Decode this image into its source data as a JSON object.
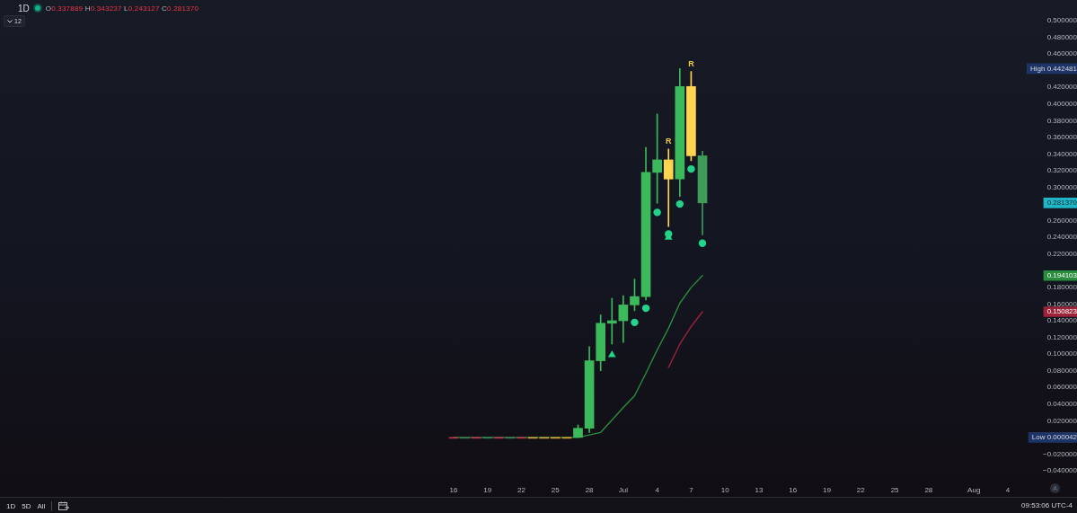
{
  "chart_data": {
    "type": "candlestick",
    "title": "1D",
    "subtitle": "O0.337889 H0.343237 L0.243127 C0.281370",
    "x": [
      "--06-16",
      "--06-17",
      "--06-18",
      "--06-19",
      "--06-20",
      "--06-21",
      "--06-22",
      "--06-23",
      "--06-24",
      "--06-25",
      "--06-26",
      "--06-27",
      "--06-28",
      "--06-29",
      "--06-30",
      "--07-01",
      "--07-02",
      "--07-03",
      "--07-04",
      "--07-05",
      "--07-06",
      "--07-07",
      "--07-08"
    ],
    "ohlc": [
      [
        4.2e-05,
        4.2e-05,
        4.2e-05,
        4.2e-05
      ],
      [
        4.2e-05,
        4.2e-05,
        4.2e-05,
        4.2e-05
      ],
      [
        4.2e-05,
        4.2e-05,
        4.2e-05,
        4.2e-05
      ],
      [
        4.2e-05,
        4.2e-05,
        4.2e-05,
        4.2e-05
      ],
      [
        4.2e-05,
        4.2e-05,
        4.2e-05,
        4.2e-05
      ],
      [
        4.2e-05,
        4.2e-05,
        4.2e-05,
        4.2e-05
      ],
      [
        4.2e-05,
        4.2e-05,
        4.2e-05,
        4.2e-05
      ],
      [
        4.2e-05,
        4.2e-05,
        4.2e-05,
        4.2e-05
      ],
      [
        4.2e-05,
        4.2e-05,
        4.2e-05,
        4.2e-05
      ],
      [
        4.2e-05,
        4.2e-05,
        4.2e-05,
        4.2e-05
      ],
      [
        4.2e-05,
        4.2e-05,
        4.2e-05,
        4.2e-05
      ],
      [
        4.2e-05,
        0.015,
        4.2e-05,
        0.011
      ],
      [
        0.011,
        0.109,
        0.006,
        0.092
      ],
      [
        0.092,
        0.147,
        0.08,
        0.137
      ],
      [
        0.137,
        0.167,
        0.112,
        0.14
      ],
      [
        0.14,
        0.17,
        0.114,
        0.159
      ],
      [
        0.159,
        0.19,
        0.152,
        0.169
      ],
      [
        0.169,
        0.348,
        0.165,
        0.318
      ],
      [
        0.318,
        0.388,
        0.281,
        0.333
      ],
      [
        0.333,
        0.346,
        0.253,
        0.31
      ],
      [
        0.31,
        0.442481,
        0.289,
        0.421
      ],
      [
        0.421,
        0.439,
        0.332,
        0.337889
      ],
      [
        0.337889,
        0.343237,
        0.243127,
        0.28137
      ]
    ],
    "colors": [
      "#c0304a",
      "#3a7a5a",
      "#c0304a",
      "#3a7a5a",
      "#c0304a",
      "#3a7a5a",
      "#c0304a",
      "#d4a040",
      "#d4a040",
      "#e0a030",
      "#e0a030",
      "#3cb95a",
      "#3cb95a",
      "#3cb95a",
      "#3cb95a",
      "#3cb95a",
      "#3cb95a",
      "#3cb95a",
      "#3cb95a",
      "#ffd54f",
      "#3cb95a",
      "#ffd54f",
      "#3e9b58"
    ],
    "series": [
      {
        "type": "line",
        "color": "#2a8c3e",
        "marker": "none",
        "line_style": "solid",
        "x": [
          "--06-16",
          "--06-17",
          "--06-18",
          "--06-19",
          "--06-20",
          "--06-21",
          "--06-22",
          "--06-23",
          "--06-24",
          "--06-25",
          "--06-26",
          "--06-27",
          "--06-28",
          "--06-29",
          "--06-30",
          "--07-01",
          "--07-02",
          "--07-03",
          "--07-04",
          "--07-05",
          "--07-06",
          "--07-07",
          "--07-08"
        ],
        "values": [
          0,
          0,
          0,
          0,
          0,
          0,
          0,
          0,
          0,
          0,
          0,
          0,
          0.003,
          0.006,
          0.021,
          0.036,
          0.05,
          0.077,
          0.105,
          0.131,
          0.161,
          0.18,
          0.194103
        ]
      },
      {
        "type": "line",
        "color": "#9c2339",
        "marker": "none",
        "line_style": "solid",
        "x": [
          "--07-05",
          "--07-06",
          "--07-07",
          "--07-08"
        ],
        "values": [
          0.084,
          0.112,
          0.133,
          0.150823
        ]
      },
      {
        "type": "scatter",
        "color": "#22d38a",
        "marker": "circle",
        "x": [
          "--07-02",
          "--07-03",
          "--07-04",
          "--07-05",
          "--07-06",
          "--07-07",
          "--07-08"
        ],
        "values": [
          0.138,
          0.155,
          0.27,
          0.244,
          0.28,
          0.322,
          0.233
        ]
      },
      {
        "type": "scatter",
        "color": "#22d38a",
        "marker": "triangle",
        "x": [
          "--06-30",
          "--07-05"
        ],
        "values": [
          0.099,
          0.24
        ]
      }
    ],
    "xlim": [
      "--06-16",
      "--08-04"
    ],
    "xticks": [
      {
        "value": "--06-16",
        "label": "16"
      },
      {
        "value": "--06-19",
        "label": "19"
      },
      {
        "value": "--06-22",
        "label": "22"
      },
      {
        "value": "--06-25",
        "label": "25"
      },
      {
        "value": "--06-28",
        "label": "28"
      },
      {
        "value": "--07-01",
        "label": "Jul"
      },
      {
        "value": "--07-04",
        "label": "4"
      },
      {
        "value": "--07-07",
        "label": "7"
      },
      {
        "value": "--07-10",
        "label": "10"
      },
      {
        "value": "--07-13",
        "label": "13"
      },
      {
        "value": "--07-16",
        "label": "16"
      },
      {
        "value": "--07-19",
        "label": "19"
      },
      {
        "value": "--07-22",
        "label": "22"
      },
      {
        "value": "--07-25",
        "label": "25"
      },
      {
        "value": "--07-28",
        "label": "28"
      },
      {
        "value": "--08-01",
        "label": "Aug"
      },
      {
        "value": "--08-04",
        "label": "4"
      }
    ],
    "ylim": [
      -0.04,
      0.5
    ],
    "yticks": [
      {
        "value": 0.5,
        "label": "0.500000"
      },
      {
        "value": 0.48,
        "label": "0.480000"
      },
      {
        "value": 0.46,
        "label": "0.460000"
      },
      {
        "value": 0.442481,
        "label": "High 0.442481"
      },
      {
        "value": 0.42,
        "label": "0.420000"
      },
      {
        "value": 0.4,
        "label": "0.400000"
      },
      {
        "value": 0.38,
        "label": "0.380000"
      },
      {
        "value": 0.36,
        "label": "0.360000"
      },
      {
        "value": 0.34,
        "label": "0.340000"
      },
      {
        "value": 0.32,
        "label": "0.320000"
      },
      {
        "value": 0.3,
        "label": "0.300000"
      },
      {
        "value": 0.28137,
        "label": "0.281370"
      },
      {
        "value": 0.26,
        "label": "0.260000"
      },
      {
        "value": 0.24,
        "label": "0.240000"
      },
      {
        "value": 0.22,
        "label": "0.220000"
      },
      {
        "value": 0.194103,
        "label": "0.194103"
      },
      {
        "value": 0.18,
        "label": "0.180000"
      },
      {
        "value": 0.16,
        "label": "0.160000"
      },
      {
        "value": 0.150823,
        "label": "0.150823"
      },
      {
        "value": 0.14,
        "label": "0.140000"
      },
      {
        "value": 0.12,
        "label": "0.120000"
      },
      {
        "value": 0.1,
        "label": "0.100000"
      },
      {
        "value": 0.08,
        "label": "0.080000"
      },
      {
        "value": 0.06,
        "label": "0.060000"
      },
      {
        "value": 0.04,
        "label": "0.040000"
      },
      {
        "value": 0.02,
        "label": "0.020000"
      },
      {
        "value": 4.2e-05,
        "label": "Low 0.000042"
      },
      {
        "value": -0.02,
        "label": "−0.020000"
      },
      {
        "value": -0.04,
        "label": "−0.040000"
      }
    ],
    "annotations": [
      "12",
      {
        "text": "R",
        "x": "--07-05",
        "y": 0.346
      },
      {
        "text": "R",
        "x": "--07-07",
        "y": 0.439
      },
      "1D",
      "5D",
      "All",
      "A",
      "09:53:06 UTC-4"
    ]
  }
}
